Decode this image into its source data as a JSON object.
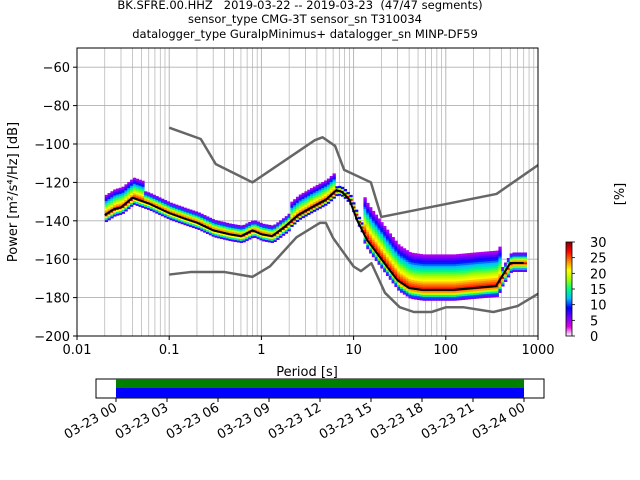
{
  "title": {
    "line1": "BK.SFRE.00.HHZ   2019-03-22 -- 2019-03-23  (47/47 segments)",
    "line2": "sensor_type CMG-3T sensor_sn T310034",
    "line3": "datalogger_type GuralpMinimus+ datalogger_sn MINP-DF59"
  },
  "colors": {
    "models": "#666666",
    "mode": "#000000",
    "coverage_data": "#008000",
    "coverage_gaps": "#0000ff"
  },
  "chart_data": {
    "type": "heatmap",
    "title": "",
    "xlabel": "Period [s]",
    "ylabel": "Power [m²/s⁴/Hz] [dB]",
    "xscale": "log",
    "xlim": [
      0.01,
      1000
    ],
    "ylim": [
      -200,
      -50
    ],
    "grid": true,
    "x_ticks": [
      {
        "value": 0.01,
        "label": "0.01"
      },
      {
        "value": 0.1,
        "label": "0.1"
      },
      {
        "value": 1,
        "label": "1"
      },
      {
        "value": 10,
        "label": "10"
      },
      {
        "value": 100,
        "label": "100"
      },
      {
        "value": 1000,
        "label": "1000"
      }
    ],
    "y_ticks": [
      -60,
      -80,
      -100,
      -120,
      -140,
      -160,
      -180,
      -200
    ],
    "y_tick_labels": [
      "−60",
      "−80",
      "−100",
      "−120",
      "−140",
      "−160",
      "−180",
      "−200"
    ],
    "colorbar": {
      "label": "[%]",
      "range": [
        0,
        30
      ],
      "ticks": [
        0,
        5,
        10,
        15,
        20,
        25,
        30
      ],
      "colormap": [
        "#ffffff",
        "#e000e0",
        "#7000ff",
        "#0000ff",
        "#00c0ff",
        "#00ff80",
        "#a0ff00",
        "#ffff00",
        "#ff8000",
        "#ff0000",
        "#800000"
      ]
    },
    "nhnm": {
      "period": [
        0.1,
        0.22,
        0.32,
        0.8,
        3.8,
        4.6,
        6.3,
        7.9,
        15.4,
        20,
        354.8,
        1000
      ],
      "power": [
        -91.5,
        -97.4,
        -110.5,
        -120,
        -98,
        -96.5,
        -101,
        -113.5,
        -120,
        -138,
        -126,
        -111
      ]
    },
    "nlnm": {
      "period": [
        0.1,
        0.17,
        0.4,
        0.8,
        1.24,
        2.4,
        4.3,
        5,
        6,
        10,
        12,
        15.6,
        21.9,
        31.6,
        45,
        70,
        101,
        154,
        328,
        600,
        1000
      ],
      "power": [
        -168,
        -166.7,
        -166.7,
        -169.2,
        -163.7,
        -148.6,
        -141.1,
        -141.1,
        -149,
        -163.8,
        -166.2,
        -162.1,
        -177.5,
        -185,
        -187.5,
        -187.5,
        -185,
        -185,
        -187.5,
        -184.4,
        -178
      ]
    },
    "mode_curve": {
      "period": [
        0.02,
        0.025,
        0.03,
        0.04,
        0.06,
        0.1,
        0.15,
        0.2,
        0.3,
        0.45,
        0.6,
        0.8,
        1.0,
        1.3,
        1.8,
        2.5,
        3.5,
        5,
        6.5,
        7.5,
        9,
        11,
        14,
        18,
        24,
        30,
        40,
        55,
        80,
        120,
        200,
        350,
        500,
        700
      ],
      "power": [
        -137,
        -134,
        -133,
        -128,
        -131,
        -136,
        -139,
        -141,
        -145,
        -147,
        -148,
        -145,
        -147,
        -148,
        -143,
        -137,
        -133,
        -129,
        -124,
        -125,
        -129,
        -140,
        -150,
        -157,
        -165,
        -171,
        -175,
        -176,
        -176,
        -176,
        -175,
        -174,
        -162,
        -162
      ]
    }
  },
  "coverage": {
    "ticks": [
      "03-23 00",
      "03-23 03",
      "03-23 06",
      "03-23 09",
      "03-23 12",
      "03-23 15",
      "03-23 18",
      "03-23 21",
      "03-24 00"
    ],
    "start_fraction": 0.0,
    "end_fraction": 1.0
  }
}
